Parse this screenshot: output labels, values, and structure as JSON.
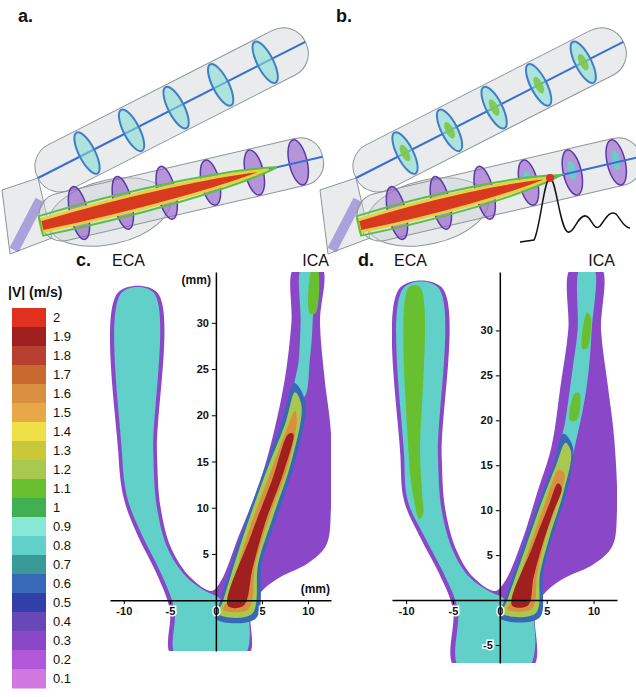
{
  "chart_data": [
    {
      "type": "rendering",
      "label": "a."
    },
    {
      "type": "rendering",
      "label": "b."
    },
    {
      "type": "colorbar",
      "title": "|V| (m/s)",
      "ticks": [
        2,
        1.9,
        1.8,
        1.7,
        1.6,
        1.5,
        1.4,
        1.3,
        1.2,
        1.1,
        1,
        0.9,
        0.8,
        0.7,
        0.6,
        0.5,
        0.4,
        0.3,
        0.2,
        0.1
      ],
      "colors": [
        "#e03020",
        "#a02020",
        "#b84030",
        "#c86a30",
        "#d89040",
        "#e8a848",
        "#f0e048",
        "#c8c838",
        "#a8c850",
        "#68c030",
        "#40b050",
        "#88e8d8",
        "#60d0c8",
        "#3a9a98",
        "#3868b8",
        "#3040a8",
        "#6848b8",
        "#8a48c8",
        "#b058d8",
        "#d078e0"
      ]
    },
    {
      "type": "contour",
      "label": "c.",
      "vessel_labels": [
        "ECA",
        "ICA"
      ],
      "xlabel": "(mm)",
      "ylabel": "(mm)",
      "xlim": [
        -11.5,
        12.5
      ],
      "ylim": [
        -5.5,
        35.5
      ],
      "xticks": [
        -10,
        -5,
        0,
        5,
        10
      ],
      "yticks": [
        5,
        10,
        15,
        20,
        25,
        30
      ],
      "regions": [
        {
          "level": 0.3,
          "x": [
            -4.8,
            -5,
            -6.5,
            -8.5,
            -10,
            -10.6,
            -10.6,
            -6.4,
            -6.4,
            -6,
            -4.8,
            -2.8,
            -0.5,
            0.5,
            2.5,
            4.5,
            6,
            7.5,
            8.2,
            8.5,
            11.5,
            11.3,
            11.8,
            12.5,
            12.5,
            12,
            10,
            7,
            5,
            3.8,
            3.5
          ],
          "y": [
            -6,
            -1,
            3,
            7,
            11,
            16,
            33.3,
            33.3,
            16,
            10,
            5.5,
            2.5,
            1,
            2,
            7,
            12,
            17,
            24,
            30,
            36,
            36,
            30,
            24,
            18,
            10,
            6,
            4,
            2.5,
            1,
            -1,
            -6
          ]
        },
        {
          "level": 0.8,
          "x": [
            -4.3,
            -4.5,
            -6,
            -8,
            -9.6,
            -10.2,
            -10.2,
            -6.8,
            -6.8,
            -6.4,
            -5.2,
            -3.2,
            -1,
            0.3,
            1,
            3,
            3.1
          ],
          "y": [
            -6,
            -1,
            3,
            7,
            11,
            16,
            33.3,
            33.3,
            16,
            10,
            5.5,
            2.5,
            0.9,
            0.3,
            -0.5,
            -0.5,
            -6
          ]
        },
        {
          "level": 0.8,
          "x": [
            8.5,
            9,
            9.2,
            9.3,
            10.5,
            10.5,
            10.2,
            9.6
          ],
          "y": [
            22,
            26,
            30,
            36,
            36,
            30,
            26,
            22
          ]
        },
        {
          "level": 1.1,
          "x": [
            10.2,
            10.5,
            11,
            10.8
          ],
          "y": [
            31,
            36,
            36,
            31
          ]
        },
        {
          "level": 0.6,
          "x": [
            0,
            0.5,
            2.7,
            5.2,
            7.2,
            8.5,
            9.7,
            8.6,
            6.6,
            5,
            4.3
          ],
          "y": [
            -2,
            0,
            7,
            14,
            19.5,
            23.5,
            21.5,
            15,
            9,
            4,
            -2
          ]
        },
        {
          "level": 1.2,
          "x": [
            0.3,
            0.8,
            3,
            5.5,
            7.5,
            8.6,
            9.3,
            8.2,
            6.2,
            4.6,
            3.9
          ],
          "y": [
            -1.5,
            0,
            7,
            14,
            19,
            22.5,
            21,
            15,
            9,
            4,
            -1.5
          ]
        },
        {
          "level": 1.6,
          "x": [
            0.8,
            1.3,
            3.4,
            5.8,
            7.7,
            8.6,
            8.8,
            7.8,
            5.8,
            4.3,
            3.5
          ],
          "y": [
            -1,
            0,
            7,
            13.5,
            18.5,
            20.5,
            19.5,
            14.5,
            9,
            4,
            -1
          ]
        },
        {
          "level": 1.9,
          "x": [
            1.3,
            3.8,
            6.1,
            7.9,
            8.4,
            7.4,
            5.4,
            4,
            3
          ],
          "y": [
            -0.6,
            7,
            13,
            18,
            18,
            14,
            8.5,
            3.5,
            -0.6
          ]
        }
      ]
    },
    {
      "type": "contour",
      "label": "d.",
      "vessel_labels": [
        "ECA",
        "ICA"
      ],
      "xlim": [
        -11.5,
        12.5
      ],
      "ylim": [
        -7,
        36.5
      ],
      "xticks": [
        -10,
        -5,
        0,
        5,
        10
      ],
      "yticks": [
        -5,
        5,
        10,
        15,
        20,
        25,
        30
      ],
      "regions": [
        {
          "level": 0.3,
          "x": [
            -4.8,
            -5,
            -6.5,
            -8.5,
            -10.2,
            -10.6,
            -10.6,
            -6.2,
            -6.2,
            -5.8,
            -4.6,
            -2.8,
            -0.5,
            0.5,
            2.5,
            4,
            5.5,
            6.5,
            7.3,
            7.6,
            10.8,
            10.8,
            11.5,
            12.2,
            12.5,
            12,
            10,
            7,
            5,
            3.8,
            3.5
          ],
          "y": [
            -7.5,
            -1,
            3,
            7,
            11,
            16,
            34.8,
            34.8,
            16,
            10,
            5.5,
            2.5,
            1,
            2,
            7,
            12,
            17,
            24,
            30,
            37,
            37,
            30,
            24,
            18,
            10,
            6,
            4,
            2.5,
            1,
            -1,
            -7.5
          ]
        },
        {
          "level": 0.8,
          "x": [
            -4.3,
            -4.5,
            -6,
            -8,
            -9.8,
            -10.2,
            -10.2,
            -6.6,
            -6.6,
            -6.2,
            -5,
            -3.2,
            -1,
            0.3,
            1,
            3,
            3.1
          ],
          "y": [
            -7.5,
            -1,
            3,
            7,
            11,
            16,
            34.8,
            34.8,
            16,
            10,
            5.5,
            2.5,
            0.9,
            0.3,
            -0.5,
            -0.5,
            -7.5
          ]
        },
        {
          "level": 1.1,
          "x": [
            -8.6,
            -9.3,
            -9.7,
            -9.7,
            -8.5,
            -8.5,
            -8.3,
            -8.2
          ],
          "y": [
            9,
            12,
            16,
            34.8,
            34.8,
            16,
            12,
            9.5
          ]
        },
        {
          "level": 0.8,
          "x": [
            6.2,
            7,
            7.8,
            8.3,
            8.6,
            10,
            9.8,
            9.3,
            8.2,
            7.3
          ],
          "y": [
            15,
            20,
            26,
            30,
            37,
            37,
            30,
            24,
            18,
            15
          ]
        },
        {
          "level": 1.1,
          "x": [
            7.5,
            8,
            8.5,
            8.2
          ],
          "y": [
            20,
            23,
            23,
            20
          ]
        },
        {
          "level": 1.1,
          "x": [
            8.8,
            9.3,
            9.7,
            9.3
          ],
          "y": [
            28,
            32,
            31.5,
            28
          ]
        },
        {
          "level": 0.6,
          "x": [
            0,
            0.5,
            2.5,
            4.2,
            5.7,
            6.8,
            7.8,
            7.1,
            5.6,
            4.6,
            4.2
          ],
          "y": [
            -2,
            0,
            6,
            11,
            15,
            18.5,
            17,
            12,
            7,
            3,
            -2
          ]
        },
        {
          "level": 1.2,
          "x": [
            0.3,
            0.8,
            2.8,
            4.5,
            6,
            7,
            7.6,
            6.8,
            5.3,
            4.3,
            3.8
          ],
          "y": [
            -1.5,
            0,
            6,
            11,
            15,
            17.5,
            16.5,
            12,
            7,
            3,
            -1.5
          ]
        },
        {
          "level": 1.6,
          "x": [
            0.8,
            1.3,
            3.2,
            4.9,
            6.3,
            6.9,
            6.2,
            4.9,
            4,
            3.4
          ],
          "y": [
            -1,
            0,
            6,
            11,
            14.5,
            14,
            11,
            7,
            3,
            -1
          ]
        },
        {
          "level": 1.9,
          "x": [
            1.3,
            3.5,
            5.2,
            6.2,
            6.6,
            5.6,
            4.5,
            3.6,
            3
          ],
          "y": [
            -0.6,
            6,
            10.5,
            13,
            12.5,
            9.5,
            6,
            2.5,
            -0.6
          ]
        }
      ]
    }
  ]
}
